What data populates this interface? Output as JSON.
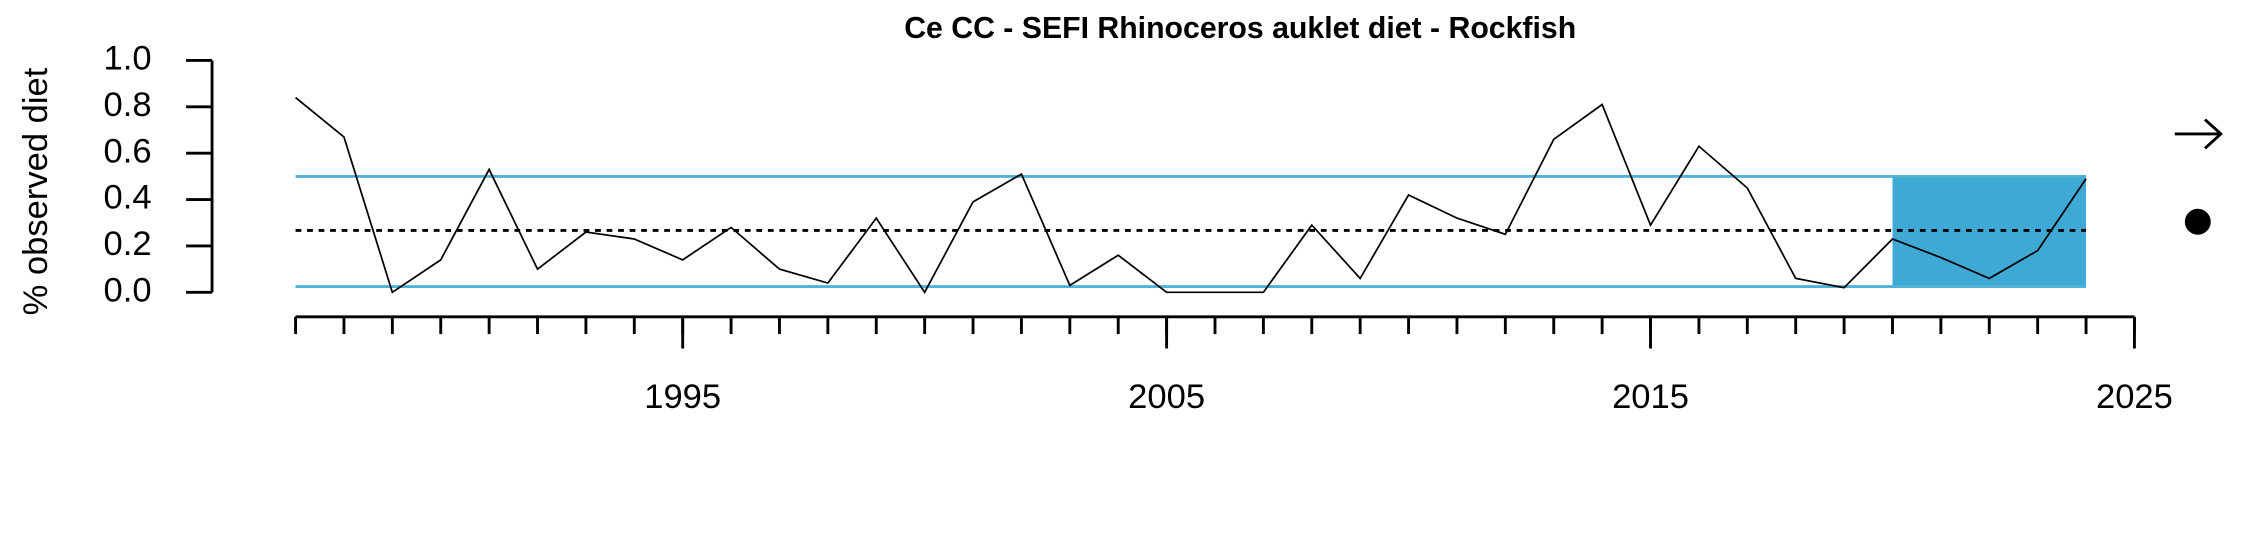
{
  "chart_data": {
    "type": "line",
    "title": "Ce CC - SEFI Rhinoceros auklet diet - Rockfish",
    "ylabel": "% observed diet",
    "x": [
      1987,
      1988,
      1989,
      1990,
      1991,
      1992,
      1993,
      1994,
      1995,
      1996,
      1997,
      1998,
      1999,
      2000,
      2001,
      2002,
      2003,
      2004,
      2005,
      2006,
      2007,
      2008,
      2009,
      2010,
      2011,
      2012,
      2013,
      2014,
      2015,
      2016,
      2017,
      2018,
      2019,
      2020,
      2021,
      2022,
      2023,
      2024
    ],
    "values": [
      0.84,
      0.67,
      0.0,
      0.14,
      0.53,
      0.1,
      0.26,
      0.23,
      0.14,
      0.28,
      0.1,
      0.04,
      0.32,
      0.0,
      0.39,
      0.51,
      0.03,
      0.16,
      0.0,
      0.0,
      0.0,
      0.29,
      0.06,
      0.42,
      0.32,
      0.25,
      0.66,
      0.81,
      0.29,
      0.63,
      0.45,
      0.06,
      0.02,
      0.23,
      0.15,
      0.06,
      0.18,
      0.49
    ],
    "color": "#000000",
    "xlim": [
      1987,
      2025
    ],
    "xticks": [
      1995,
      2005,
      2015,
      2025
    ],
    "ylim": [
      0,
      1
    ],
    "yticks": [
      {
        "value": 0,
        "label": "0.0"
      },
      0.2,
      0.4,
      0.6,
      0.8,
      {
        "value": 1,
        "label": "1.0"
      }
    ],
    "mean": 0.267,
    "upper": 0.5,
    "lower": 0.025,
    "reference_color": "#4fb3d9",
    "shade_x": [
      2020,
      2024
    ],
    "shade_color": "#3fa9d6"
  }
}
